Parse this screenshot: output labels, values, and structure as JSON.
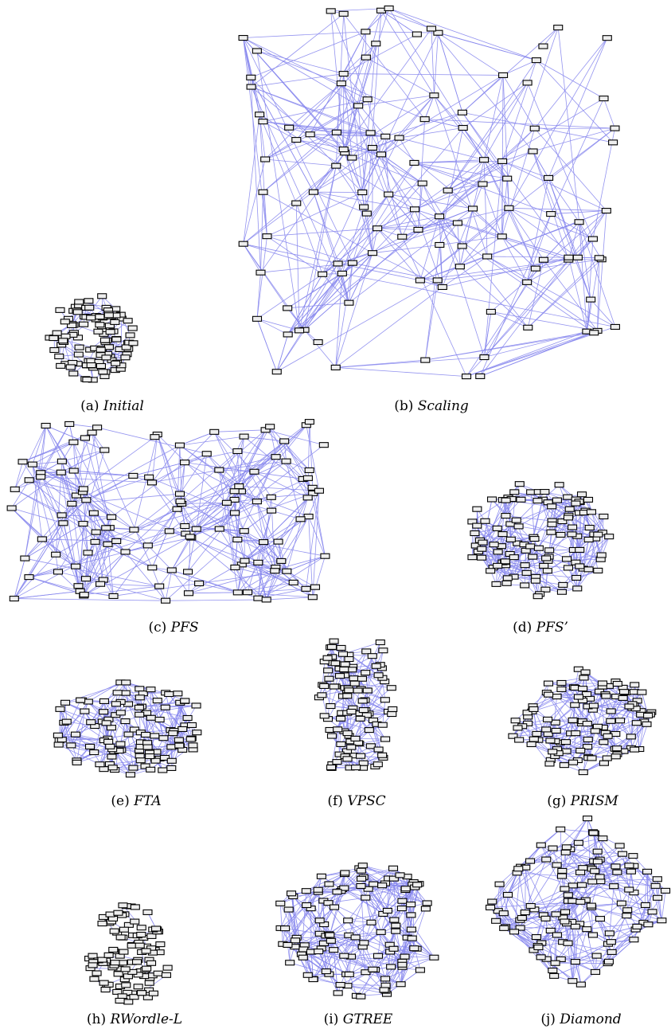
{
  "figure": {
    "panels": [
      {
        "id": "a",
        "label": "(a)",
        "name": "Initial"
      },
      {
        "id": "b",
        "label": "(b)",
        "name": "Scaling"
      },
      {
        "id": "c",
        "label": "(c)",
        "name": "PFS"
      },
      {
        "id": "d",
        "label": "(d)",
        "name": "PFS’"
      },
      {
        "id": "e",
        "label": "(e)",
        "name": "FTA"
      },
      {
        "id": "f",
        "label": "(f)",
        "name": "VPSC"
      },
      {
        "id": "g",
        "label": "(g)",
        "name": "PRISM"
      },
      {
        "id": "h",
        "label": "(h)",
        "name": "RWordle-L"
      },
      {
        "id": "i",
        "label": "(i)",
        "name": "GTREE"
      },
      {
        "id": "j",
        "label": "(j)",
        "name": "Diamond"
      }
    ],
    "colors": {
      "edge": "#8888ee",
      "node_fill": "#eeeeee",
      "node_stroke": "#000000"
    }
  }
}
